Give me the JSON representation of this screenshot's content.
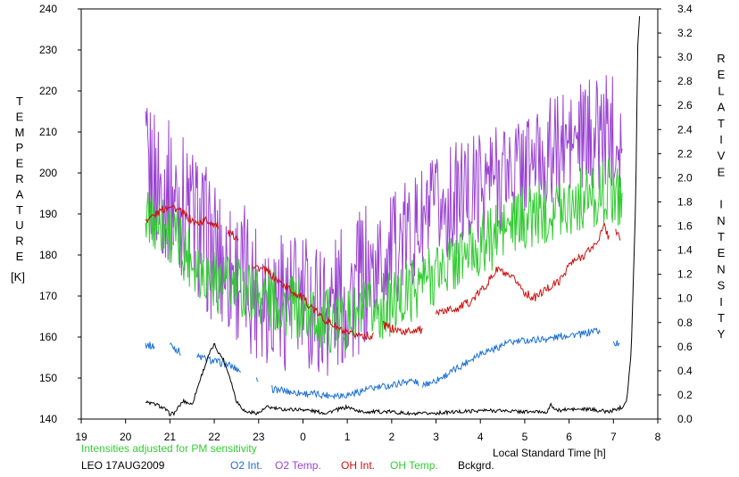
{
  "chart_data": {
    "type": "line",
    "x_axis": {
      "label": "Local Standard Time [h]",
      "range": [
        19,
        32
      ],
      "ticks": [
        19,
        20,
        21,
        22,
        23,
        24,
        25,
        26,
        27,
        28,
        29,
        30,
        31,
        32
      ],
      "tick_labels": [
        "19",
        "20",
        "21",
        "22",
        "23",
        "0",
        "1",
        "2",
        "3",
        "4",
        "5",
        "6",
        "7",
        "8"
      ]
    },
    "y_left": {
      "label": "TEMPERATURE",
      "unit": "[K]",
      "range": [
        140,
        240
      ],
      "ticks": [
        140,
        150,
        160,
        170,
        180,
        190,
        200,
        210,
        220,
        230,
        240
      ]
    },
    "y_right": {
      "label": "RELATIVE INTENSITY",
      "range": [
        0.0,
        3.4
      ],
      "ticks": [
        "0.0",
        "0.2",
        "0.4",
        "0.6",
        "0.8",
        "1.0",
        "1.2",
        "1.4",
        "1.6",
        "1.8",
        "2.0",
        "2.2",
        "2.4",
        "2.6",
        "2.8",
        "3.0",
        "3.2",
        "3.4"
      ]
    },
    "note": "Intensities adjusted for PM sensitivity",
    "station": "LEO 17AUG2009",
    "legend_placement": "bottom",
    "series": [
      {
        "name": "O2 Int.",
        "color": "#1a6fd6",
        "axis": "right",
        "segments": [
          [
            [
              20.45,
              0.62
            ],
            [
              20.65,
              0.6
            ]
          ],
          [
            [
              21.0,
              0.62
            ],
            [
              21.25,
              0.55
            ]
          ],
          [
            [
              21.6,
              0.52
            ],
            [
              22.0,
              0.48
            ],
            [
              22.3,
              0.45
            ],
            [
              22.6,
              0.4
            ]
          ],
          [
            [
              22.95,
              0.32
            ],
            [
              23.0,
              0.28
            ]
          ],
          [
            [
              23.3,
              0.25
            ],
            [
              23.8,
              0.22
            ],
            [
              24.5,
              0.2
            ],
            [
              25.0,
              0.2
            ],
            [
              25.5,
              0.25
            ],
            [
              26.0,
              0.28
            ],
            [
              26.4,
              0.32
            ],
            [
              26.6,
              0.3
            ]
          ],
          [
            [
              26.7,
              0.28
            ],
            [
              27.0,
              0.32
            ],
            [
              27.3,
              0.38
            ],
            [
              27.6,
              0.45
            ],
            [
              28.0,
              0.55
            ],
            [
              28.3,
              0.58
            ],
            [
              28.6,
              0.63
            ],
            [
              29.0,
              0.65
            ],
            [
              29.3,
              0.66
            ],
            [
              29.6,
              0.67
            ],
            [
              30.0,
              0.7
            ],
            [
              30.3,
              0.7
            ],
            [
              30.6,
              0.74
            ],
            [
              30.7,
              0.72
            ]
          ],
          [
            [
              31.0,
              0.64
            ],
            [
              31.15,
              0.62
            ]
          ]
        ]
      },
      {
        "name": "O2 Temp.",
        "color": "#9a44d0",
        "axis": "left",
        "points": [
          [
            20.45,
            200
          ],
          [
            21.0,
            195
          ],
          [
            21.5,
            190
          ],
          [
            22.0,
            180
          ],
          [
            22.5,
            176
          ],
          [
            23.0,
            172
          ],
          [
            23.5,
            170
          ],
          [
            24.0,
            168
          ],
          [
            24.5,
            167
          ],
          [
            25.0,
            170
          ],
          [
            25.5,
            175
          ],
          [
            26.0,
            181
          ],
          [
            26.5,
            186
          ],
          [
            27.0,
            190
          ],
          [
            27.5,
            194
          ],
          [
            28.0,
            197
          ],
          [
            28.5,
            200
          ],
          [
            29.0,
            202
          ],
          [
            29.5,
            204
          ],
          [
            30.0,
            207
          ],
          [
            30.5,
            209
          ],
          [
            31.0,
            211
          ],
          [
            31.2,
            210
          ]
        ]
      },
      {
        "name": "OH Int.",
        "color": "#cc1010",
        "axis": "right",
        "segments": [
          [
            [
              20.45,
              1.65
            ],
            [
              20.7,
              1.7
            ],
            [
              21.0,
              1.78
            ],
            [
              21.3,
              1.7
            ],
            [
              21.6,
              1.62
            ],
            [
              21.8,
              1.65
            ],
            [
              22.1,
              1.6
            ]
          ],
          [
            [
              22.3,
              1.55
            ],
            [
              22.55,
              1.5
            ]
          ],
          [
            [
              22.85,
              1.28
            ],
            [
              23.2,
              1.22
            ],
            [
              23.6,
              1.1
            ],
            [
              24.0,
              1.0
            ],
            [
              24.4,
              0.85
            ],
            [
              24.8,
              0.75
            ],
            [
              25.0,
              0.7
            ],
            [
              25.3,
              0.7
            ],
            [
              25.6,
              0.68
            ]
          ],
          [
            [
              25.8,
              0.78
            ],
            [
              26.0,
              0.75
            ],
            [
              26.3,
              0.72
            ],
            [
              26.6,
              0.75
            ],
            [
              26.7,
              0.72
            ]
          ],
          [
            [
              27.0,
              0.88
            ],
            [
              27.2,
              0.9
            ],
            [
              27.5,
              0.92
            ],
            [
              27.8,
              0.98
            ],
            [
              28.1,
              1.1
            ],
            [
              28.4,
              1.25
            ],
            [
              28.6,
              1.18
            ],
            [
              28.8,
              1.15
            ],
            [
              29.0,
              1.05
            ],
            [
              29.2,
              1.0
            ],
            [
              29.5,
              1.08
            ],
            [
              29.8,
              1.15
            ],
            [
              30.0,
              1.28
            ],
            [
              30.3,
              1.35
            ],
            [
              30.6,
              1.45
            ],
            [
              30.8,
              1.6
            ],
            [
              30.9,
              1.5
            ]
          ],
          [
            [
              31.05,
              1.55
            ],
            [
              31.15,
              1.5
            ]
          ]
        ]
      },
      {
        "name": "OH Temp.",
        "color": "#33cc33",
        "axis": "left",
        "points": [
          [
            20.45,
            188
          ],
          [
            20.8,
            188
          ],
          [
            21.2,
            183
          ],
          [
            21.6,
            178
          ],
          [
            22.0,
            174
          ],
          [
            22.5,
            172
          ],
          [
            23.0,
            171
          ],
          [
            23.5,
            168
          ],
          [
            24.0,
            166
          ],
          [
            24.5,
            164
          ],
          [
            25.0,
            164
          ],
          [
            25.5,
            166
          ],
          [
            26.0,
            168
          ],
          [
            26.5,
            172
          ],
          [
            27.0,
            176
          ],
          [
            27.5,
            179
          ],
          [
            28.0,
            182
          ],
          [
            28.5,
            186
          ],
          [
            29.0,
            189
          ],
          [
            29.5,
            191
          ],
          [
            30.0,
            193
          ],
          [
            30.5,
            194
          ],
          [
            31.0,
            196
          ],
          [
            31.2,
            194
          ]
        ]
      },
      {
        "name": "Bckgrd.",
        "color": "#000000",
        "axis": "right",
        "points": [
          [
            20.45,
            0.14
          ],
          [
            20.7,
            0.12
          ],
          [
            20.9,
            0.08
          ],
          [
            21.0,
            0.04
          ],
          [
            21.1,
            0.05
          ],
          [
            21.3,
            0.15
          ],
          [
            21.5,
            0.12
          ],
          [
            21.7,
            0.35
          ],
          [
            21.8,
            0.45
          ],
          [
            21.9,
            0.55
          ],
          [
            22.0,
            0.62
          ],
          [
            22.1,
            0.55
          ],
          [
            22.2,
            0.5
          ],
          [
            22.35,
            0.35
          ],
          [
            22.5,
            0.15
          ],
          [
            22.7,
            0.06
          ],
          [
            23.0,
            0.05
          ],
          [
            23.2,
            0.1
          ],
          [
            23.5,
            0.08
          ],
          [
            24.0,
            0.08
          ],
          [
            24.5,
            0.05
          ],
          [
            24.8,
            0.08
          ],
          [
            25.0,
            0.1
          ],
          [
            25.3,
            0.06
          ],
          [
            26.0,
            0.06
          ],
          [
            26.5,
            0.04
          ],
          [
            27.0,
            0.05
          ],
          [
            27.5,
            0.06
          ],
          [
            28.0,
            0.07
          ],
          [
            28.5,
            0.07
          ],
          [
            29.0,
            0.06
          ],
          [
            29.5,
            0.06
          ],
          [
            29.6,
            0.12
          ],
          [
            29.7,
            0.07
          ],
          [
            30.0,
            0.08
          ],
          [
            30.5,
            0.08
          ],
          [
            30.9,
            0.06
          ],
          [
            31.2,
            0.1
          ],
          [
            31.3,
            0.16
          ],
          [
            31.4,
            0.55
          ],
          [
            31.5,
            1.8
          ],
          [
            31.55,
            3.1
          ],
          [
            31.6,
            3.4
          ]
        ]
      }
    ]
  }
}
